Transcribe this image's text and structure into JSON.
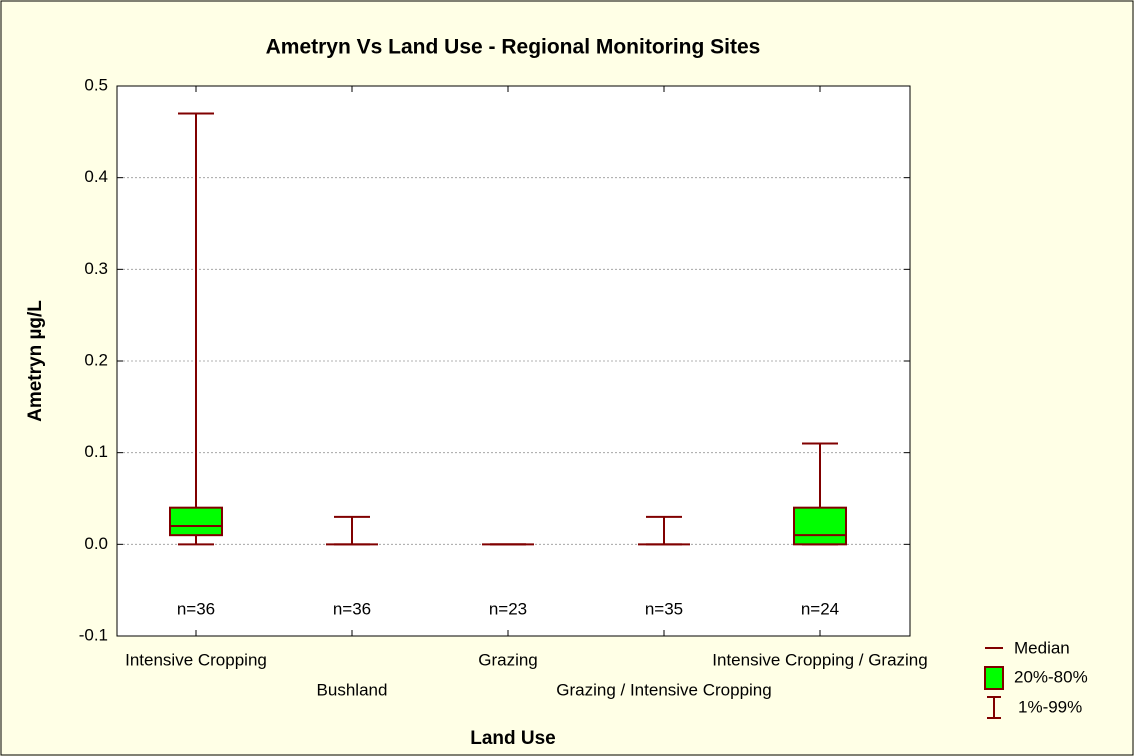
{
  "chart_data": {
    "type": "box",
    "title": "Ametryn Vs Land Use - Regional Monitoring Sites",
    "xlabel": "Land Use",
    "ylabel": "Ametryn µg/L",
    "categories": [
      "Intensive Cropping",
      "Bushland",
      "Grazing",
      "Grazing / Intensive Cropping",
      "Intensive Cropping / Grazing"
    ],
    "n_labels": [
      "n=36",
      "n=36",
      "n=23",
      "n=35",
      "n=24"
    ],
    "median": {
      "name": "Median",
      "color": "#800000",
      "values": [
        0.02,
        0,
        0,
        0,
        0.01
      ]
    },
    "box": {
      "name": "20%-80%",
      "color": "#00ff00",
      "low": [
        0.01,
        0,
        0,
        0,
        0
      ],
      "high": [
        0.04,
        0,
        0,
        0,
        0.04
      ]
    },
    "whisker": {
      "name": "1%-99%",
      "color": "#800000",
      "low": [
        0,
        0,
        0,
        0,
        0
      ],
      "high": [
        0.47,
        0.03,
        0,
        0.03,
        0.11
      ]
    },
    "ylim": [
      -0.1,
      0.5
    ],
    "yticks": [
      -0.1,
      {
        "value": 0,
        "label": "0.0"
      },
      0.1,
      0.2,
      0.3,
      0.4,
      0.5
    ],
    "grid": true
  }
}
